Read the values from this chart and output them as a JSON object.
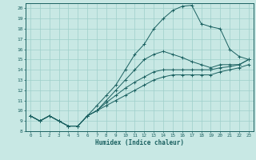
{
  "title": "",
  "xlabel": "Humidex (Indice chaleur)",
  "xlim": [
    -0.5,
    23.5
  ],
  "ylim": [
    8,
    20.5
  ],
  "xticks": [
    0,
    1,
    2,
    3,
    4,
    5,
    6,
    7,
    8,
    9,
    10,
    11,
    12,
    13,
    14,
    15,
    16,
    17,
    18,
    19,
    20,
    21,
    22,
    23
  ],
  "yticks": [
    8,
    9,
    10,
    11,
    12,
    13,
    14,
    15,
    16,
    17,
    18,
    19,
    20
  ],
  "bg_color": "#c8e8e4",
  "line_color": "#1a6060",
  "grid_color": "#9ecfca",
  "lines": [
    {
      "x": [
        0,
        1,
        2,
        3,
        4,
        5,
        6,
        7,
        8,
        9,
        10,
        11,
        12,
        13,
        14,
        15,
        16,
        17,
        18,
        19,
        20,
        21,
        22,
        23
      ],
      "y": [
        9.5,
        9.0,
        9.5,
        9.0,
        8.5,
        8.5,
        9.5,
        10.5,
        11.5,
        12.5,
        14.0,
        15.5,
        16.5,
        18.0,
        19.0,
        19.8,
        20.2,
        20.3,
        18.5,
        18.2,
        18.0,
        16.0,
        15.3,
        15.0
      ],
      "marker": "+"
    },
    {
      "x": [
        0,
        1,
        2,
        3,
        4,
        5,
        6,
        7,
        8,
        9,
        10,
        11,
        12,
        13,
        14,
        15,
        16,
        17,
        18,
        19,
        20,
        21,
        22,
        23
      ],
      "y": [
        9.5,
        9.0,
        9.5,
        9.0,
        8.5,
        8.5,
        9.5,
        10.0,
        11.0,
        12.0,
        13.0,
        14.0,
        15.0,
        15.5,
        15.8,
        15.5,
        15.2,
        14.8,
        14.5,
        14.2,
        14.5,
        14.5,
        14.5,
        15.0
      ],
      "marker": "+"
    },
    {
      "x": [
        0,
        1,
        2,
        3,
        4,
        5,
        6,
        7,
        8,
        9,
        10,
        11,
        12,
        13,
        14,
        15,
        16,
        17,
        18,
        19,
        20,
        21,
        22,
        23
      ],
      "y": [
        9.5,
        9.0,
        9.5,
        9.0,
        8.5,
        8.5,
        9.5,
        10.0,
        10.8,
        11.5,
        12.2,
        12.8,
        13.3,
        13.8,
        14.0,
        14.0,
        14.0,
        14.0,
        14.0,
        14.0,
        14.2,
        14.3,
        14.5,
        15.0
      ],
      "marker": "+"
    },
    {
      "x": [
        0,
        1,
        2,
        3,
        4,
        5,
        6,
        7,
        8,
        9,
        10,
        11,
        12,
        13,
        14,
        15,
        16,
        17,
        18,
        19,
        20,
        21,
        22,
        23
      ],
      "y": [
        9.5,
        9.0,
        9.5,
        9.0,
        8.5,
        8.5,
        9.5,
        10.0,
        10.5,
        11.0,
        11.5,
        12.0,
        12.5,
        13.0,
        13.3,
        13.5,
        13.5,
        13.5,
        13.5,
        13.5,
        13.8,
        14.0,
        14.2,
        14.5
      ],
      "marker": "+"
    }
  ]
}
